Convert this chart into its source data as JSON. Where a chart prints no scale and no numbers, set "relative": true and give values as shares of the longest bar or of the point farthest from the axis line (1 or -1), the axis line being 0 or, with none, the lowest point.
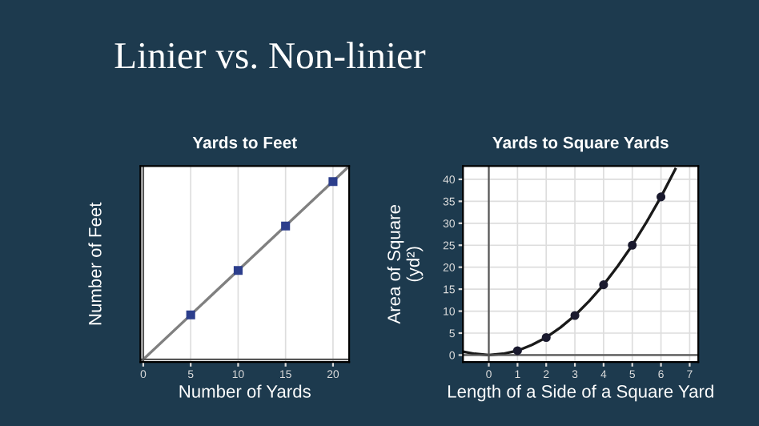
{
  "chart_data": [
    {
      "type": "line",
      "title": "Yards to Feet",
      "xlabel": "Number of Yards",
      "ylabel": "Number of Feet",
      "annotations": [
        "Linier vs. Non-linier"
      ],
      "relative": true,
      "xlim": [
        -0.3,
        21.7
      ],
      "xticks": [
        0,
        5,
        10,
        15,
        20
      ],
      "grid": "x",
      "series": [
        {
          "color": "#808080",
          "x": [
            -0.3,
            21.7
          ],
          "values": [
            -0.014,
            1
          ],
          "marker": "none"
        },
        {
          "type": "scatter",
          "color": "#2c3e8c",
          "x": [
            5,
            10,
            15,
            20
          ],
          "values": [
            0.23,
            0.46,
            0.69,
            0.92
          ],
          "marker": "square"
        }
      ]
    },
    {
      "type": "line",
      "title": "Yards to Square Yards",
      "xlabel": "Length of a Side of a Square Yard",
      "ylabel": "Area of Square\n(yd²)",
      "xlim": [
        -0.9,
        7.3
      ],
      "ylim": [
        -1.6,
        43
      ],
      "xticks": [
        0,
        1,
        2,
        3,
        4,
        5,
        6,
        7
      ],
      "yticks": [
        0,
        5,
        10,
        15,
        20,
        25,
        30,
        35,
        40
      ],
      "grid": true,
      "series": [
        {
          "color": "#1a1a1a",
          "x": [
            -0.9,
            -0.5,
            0,
            0.5,
            1,
            1.5,
            2,
            2.5,
            3,
            3.5,
            4,
            4.5,
            5,
            5.5,
            6,
            6.5
          ],
          "values": [
            0.8,
            0.3,
            0,
            0.3,
            1,
            2.3,
            4,
            6.3,
            9,
            12.3,
            16,
            20.3,
            25,
            30.3,
            36,
            42.3
          ],
          "marker": "none"
        },
        {
          "type": "scatter",
          "color": "#1a1a2e",
          "x": [
            1,
            2,
            3,
            4,
            5,
            6
          ],
          "values": [
            1,
            4,
            9,
            16,
            25,
            36
          ],
          "marker": "circle"
        }
      ]
    }
  ]
}
